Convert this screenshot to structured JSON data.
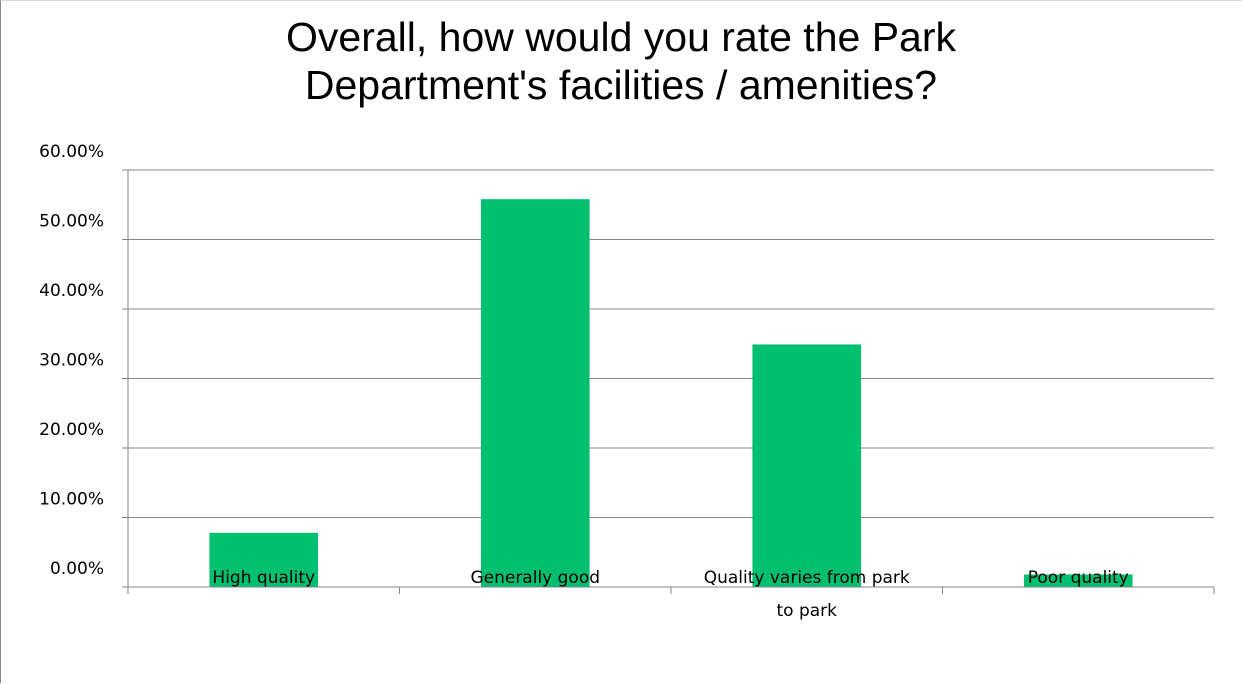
{
  "chart_data": {
    "type": "bar",
    "title": "Overall, how would you rate the Park Department's facilities / amenities?",
    "xlabel": "",
    "ylabel": "",
    "ylim": [
      0,
      0.6
    ],
    "yticks": [
      "0.00%",
      "10.00%",
      "20.00%",
      "30.00%",
      "40.00%",
      "50.00%",
      "60.00%"
    ],
    "categories": [
      "High quality",
      "Generally good",
      "Quality varies from park to park",
      "Poor quality"
    ],
    "category_lines": [
      [
        "High quality"
      ],
      [
        "Generally good"
      ],
      [
        "Quality varies from park",
        "to park"
      ],
      [
        "Poor quality"
      ]
    ],
    "values": [
      0.078,
      0.558,
      0.349,
      0.018
    ],
    "bar_color": "#00bf6f",
    "grid": true,
    "legend": "none"
  }
}
